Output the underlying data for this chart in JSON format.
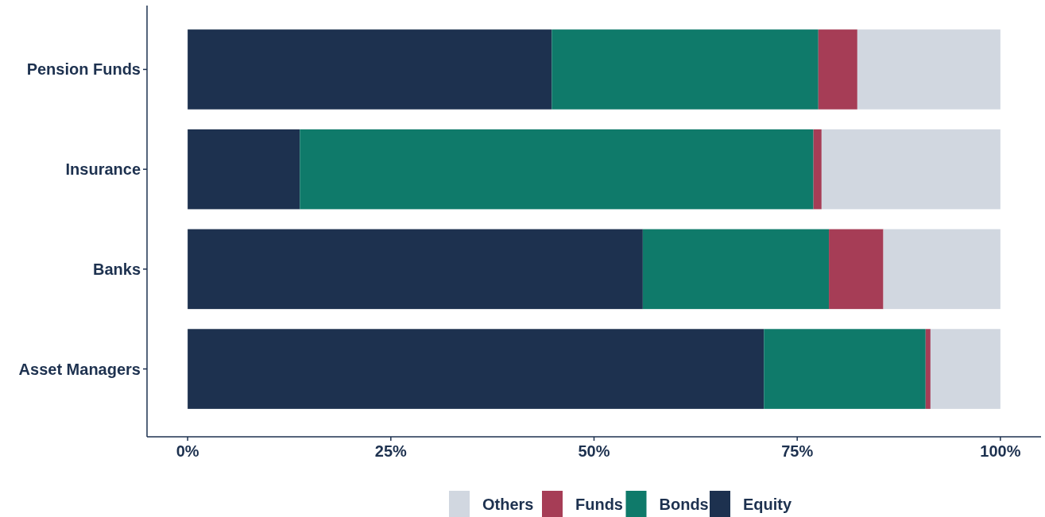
{
  "chart_data": {
    "type": "bar",
    "orientation": "horizontal",
    "stacked": true,
    "categories": [
      "Pension Funds",
      "Insurance",
      "Banks",
      "Asset Managers"
    ],
    "series": [
      {
        "name": "Equity",
        "color": "#1d314f",
        "values": [
          44.8,
          13.8,
          56.0,
          70.9
        ]
      },
      {
        "name": "Bonds",
        "color": "#0f7a6a",
        "values": [
          32.8,
          63.2,
          22.9,
          19.9
        ]
      },
      {
        "name": "Funds",
        "color": "#a63d56",
        "values": [
          4.8,
          1.0,
          6.7,
          0.6
        ]
      },
      {
        "name": "Others",
        "color": "#d1d7e0",
        "values": [
          17.6,
          22.0,
          14.4,
          8.6
        ]
      }
    ],
    "xlim": [
      -5,
      105
    ],
    "xticks": [
      {
        "value": 0,
        "label": "0%"
      },
      {
        "value": 25,
        "label": "25%"
      },
      {
        "value": 50,
        "label": "50%"
      },
      {
        "value": 75,
        "label": "75%"
      },
      {
        "value": 100,
        "label": "100%"
      }
    ],
    "grid": false,
    "legend": "bottom"
  }
}
